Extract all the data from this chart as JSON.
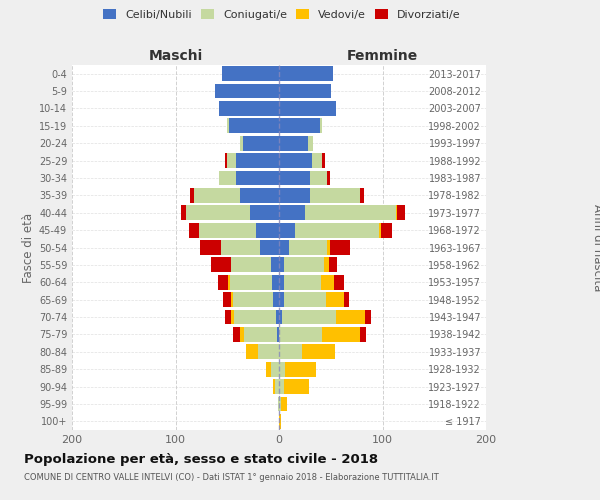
{
  "age_groups": [
    "100+",
    "95-99",
    "90-94",
    "85-89",
    "80-84",
    "75-79",
    "70-74",
    "65-69",
    "60-64",
    "55-59",
    "50-54",
    "45-49",
    "40-44",
    "35-39",
    "30-34",
    "25-29",
    "20-24",
    "15-19",
    "10-14",
    "5-9",
    "0-4"
  ],
  "birth_years": [
    "≤ 1917",
    "1918-1922",
    "1923-1927",
    "1928-1932",
    "1933-1937",
    "1938-1942",
    "1943-1947",
    "1948-1952",
    "1953-1957",
    "1958-1962",
    "1963-1967",
    "1968-1972",
    "1973-1977",
    "1978-1982",
    "1983-1987",
    "1988-1992",
    "1993-1997",
    "1998-2002",
    "2003-2007",
    "2008-2012",
    "2013-2017"
  ],
  "male": {
    "celibi": [
      0,
      0,
      0,
      0,
      0,
      2,
      3,
      6,
      7,
      8,
      18,
      22,
      28,
      38,
      42,
      42,
      35,
      48,
      58,
      62,
      55
    ],
    "coniugati": [
      0,
      1,
      4,
      8,
      20,
      32,
      40,
      38,
      40,
      38,
      38,
      55,
      62,
      44,
      16,
      8,
      3,
      2,
      0,
      0,
      0
    ],
    "vedovi": [
      0,
      0,
      2,
      5,
      12,
      4,
      3,
      2,
      2,
      0,
      0,
      0,
      0,
      0,
      0,
      0,
      0,
      0,
      0,
      0,
      0
    ],
    "divorziati": [
      0,
      0,
      0,
      0,
      0,
      6,
      6,
      8,
      10,
      20,
      20,
      10,
      5,
      4,
      0,
      2,
      0,
      0,
      0,
      0,
      0
    ]
  },
  "female": {
    "nubili": [
      0,
      0,
      0,
      0,
      0,
      0,
      3,
      5,
      5,
      5,
      10,
      15,
      25,
      30,
      30,
      32,
      28,
      40,
      55,
      50,
      52
    ],
    "coniugate": [
      0,
      2,
      5,
      6,
      22,
      42,
      52,
      40,
      36,
      38,
      36,
      82,
      88,
      48,
      16,
      10,
      5,
      2,
      0,
      0,
      0
    ],
    "vedove": [
      2,
      6,
      24,
      30,
      32,
      36,
      28,
      18,
      12,
      5,
      3,
      2,
      1,
      0,
      0,
      0,
      0,
      0,
      0,
      0,
      0
    ],
    "divorziate": [
      0,
      0,
      0,
      0,
      0,
      6,
      6,
      5,
      10,
      8,
      20,
      10,
      8,
      4,
      3,
      2,
      0,
      0,
      0,
      0,
      0
    ]
  },
  "colors": {
    "celibi": "#4472c4",
    "coniugati": "#c5d9a0",
    "vedovi": "#ffc000",
    "divorziati": "#cc0000"
  },
  "xlim": 200,
  "title": "Popolazione per età, sesso e stato civile - 2018",
  "subtitle": "COMUNE DI CENTRO VALLE INTELVI (CO) - Dati ISTAT 1° gennaio 2018 - Elaborazione TUTTITALIA.IT",
  "ylabel": "Fasce di età",
  "ylabel_right": "Anni di nascita",
  "label_maschi": "Maschi",
  "label_femmine": "Femmine",
  "legend_labels": [
    "Celibi/Nubili",
    "Coniugati/e",
    "Vedovi/e",
    "Divorziati/e"
  ],
  "bg_color": "#efefef",
  "plot_bg_color": "#ffffff",
  "grid_color": "#cccccc",
  "bar_height": 0.85
}
